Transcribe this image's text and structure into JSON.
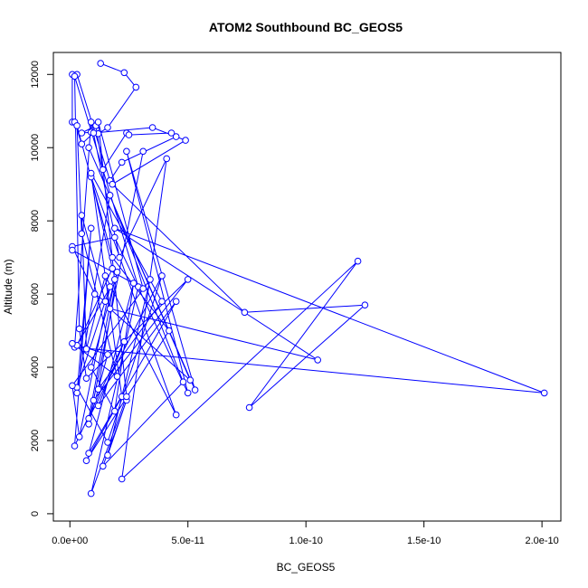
{
  "chart_data": {
    "type": "line",
    "title": "ATOM2 Southbound BC_GEOS5",
    "xlabel": "BC_GEOS5",
    "ylabel": "Altitude (m)",
    "xlim": [
      -7e-12,
      2.08e-10
    ],
    "ylim": [
      -200,
      12600
    ],
    "x_ticks": [
      0,
      5e-11,
      1e-10,
      1.5e-10,
      2e-10
    ],
    "x_tick_labels": [
      "0.0e+00",
      "5.0e-11",
      "1.0e-10",
      "1.5e-10",
      "2.0e-10"
    ],
    "y_ticks": [
      0,
      2000,
      4000,
      6000,
      8000,
      10000,
      12000
    ],
    "y_tick_labels": [
      "0",
      "2000",
      "4000",
      "6000",
      "8000",
      "10000",
      "12000"
    ],
    "grid": false,
    "legend": "none",
    "series": [
      {
        "color": "#0000ff",
        "marker": "open-circle",
        "x": [
          1.3e-11,
          2.3e-11,
          2.8e-11,
          1.6e-11,
          1.2e-11,
          9e-12,
          5e-12,
          1.1e-11,
          1.4e-11,
          2.4e-11,
          2.5e-11,
          4.3e-11,
          4.5e-11,
          2.2e-11,
          1.7e-11,
          3e-12,
          1e-12,
          1e-12,
          2e-12,
          5e-12,
          1e-11,
          3.5e-11,
          4.9e-11,
          1.8e-11,
          7.4e-11,
          1.25e-10,
          7.6e-11,
          1.22e-10,
          2.2e-11,
          4.1e-11,
          2.1e-11,
          9e-12,
          2e-12,
          2.01e-10,
          1.9e-11,
          1.05e-10,
          1.7e-11,
          5.1e-11,
          8e-12,
          5.3e-11,
          2.4e-11,
          5e-11,
          1.9e-11,
          1e-12,
          1.05e-11,
          1.5e-11,
          5e-12,
          7e-12,
          1.5e-11,
          4.5e-11,
          9e-12,
          1.8e-11,
          3e-12,
          1.9e-11,
          8e-12,
          3.9e-11,
          1.6e-11,
          3e-12,
          1.7e-11,
          4e-12,
          1e-12,
          3.4e-11,
          1.6e-11,
          2.4e-11,
          1.4e-11,
          4.8e-11,
          1.7e-11,
          3e-12,
          9e-12,
          2e-12,
          2.3e-11,
          1.2e-11,
          4.5e-11,
          8e-12,
          2.7e-11,
          1.9e-11,
          9e-12,
          2e-11,
          1.2e-11,
          3.9e-11,
          9e-12,
          2.2e-11,
          7e-12,
          4.2e-11,
          1.8e-11,
          3e-12,
          5e-12,
          2e-11,
          1e-12,
          1.6e-11,
          8e-12,
          3.1e-11,
          1e-11,
          5e-11,
          7e-12,
          4e-12,
          2e-12,
          2.9e-11,
          9e-12,
          2.4e-11,
          1.2e-11,
          3.1e-11,
          1e-12
        ],
        "y": [
          12300,
          12050,
          11650,
          10550,
          10380,
          10420,
          10400,
          10600,
          9400,
          10400,
          10350,
          10400,
          10300,
          9600,
          9100,
          12000,
          12000,
          10700,
          10700,
          10100,
          10400,
          10550,
          10200,
          9000,
          5500,
          5700,
          2900,
          6900,
          950,
          9700,
          7000,
          10700,
          4550,
          3300,
          7800,
          4200,
          5600,
          3650,
          10000,
          3380,
          9900,
          3300,
          7550,
          7300,
          6000,
          5800,
          8150,
          4500,
          6500,
          2700,
          9200,
          6700,
          4600,
          6400,
          2600,
          6500,
          1950,
          3450,
          6200,
          2100,
          3500,
          6400,
          1600,
          3100,
          1300,
          3600,
          8700,
          3300,
          7800,
          1850,
          4700,
          2950,
          5800,
          1650,
          6300,
          2800,
          4000,
          6600,
          3400,
          5800,
          9300,
          3200,
          1450,
          5000,
          7000,
          10600,
          7650,
          3750,
          4650,
          4350,
          2450,
          9900,
          3100,
          6400,
          3700,
          5050,
          11950,
          6200,
          550,
          3200,
          10700,
          6150,
          7200
        ]
      }
    ]
  }
}
